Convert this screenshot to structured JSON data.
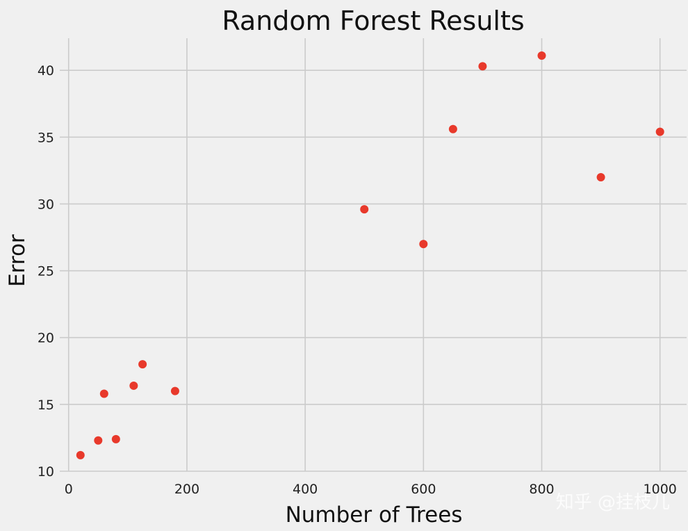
{
  "chart_data": {
    "type": "scatter",
    "title": "Random Forest Results",
    "xlabel": "Number of Trees",
    "ylabel": "Error",
    "xlim": [
      -15,
      1045
    ],
    "ylim": [
      10,
      42.4
    ],
    "xticks": [
      0,
      200,
      400,
      600,
      800,
      1000
    ],
    "yticks": [
      10,
      15,
      20,
      25,
      30,
      35,
      40
    ],
    "grid": true,
    "marker_color": "#e8392b",
    "series": [
      {
        "points": [
          {
            "x": 20,
            "y": 11.2
          },
          {
            "x": 50,
            "y": 12.3
          },
          {
            "x": 60,
            "y": 15.8
          },
          {
            "x": 80,
            "y": 12.4
          },
          {
            "x": 110,
            "y": 16.4
          },
          {
            "x": 125,
            "y": 18.0
          },
          {
            "x": 180,
            "y": 16.0
          },
          {
            "x": 500,
            "y": 29.6
          },
          {
            "x": 600,
            "y": 27.0
          },
          {
            "x": 650,
            "y": 35.6
          },
          {
            "x": 700,
            "y": 40.3
          },
          {
            "x": 800,
            "y": 41.1
          },
          {
            "x": 900,
            "y": 32.0
          },
          {
            "x": 1000,
            "y": 35.4
          }
        ]
      }
    ]
  },
  "watermark": "知乎 @挂枝儿"
}
